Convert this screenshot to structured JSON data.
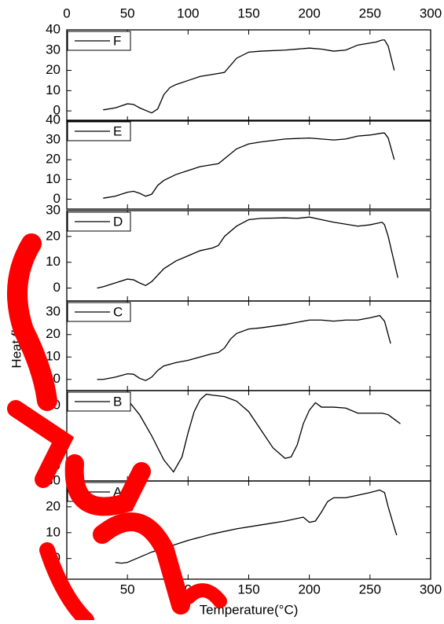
{
  "chart_data": [
    {
      "type": "line",
      "xlim": [
        0,
        300
      ],
      "xticks": [
        0,
        50,
        100,
        150,
        200,
        250,
        300
      ],
      "ylim": [
        -5,
        40
      ],
      "yticks": [
        0,
        10,
        20,
        30,
        40
      ],
      "x": [
        30,
        40,
        50,
        55,
        60,
        70,
        75,
        80,
        85,
        90,
        100,
        110,
        120,
        130,
        140,
        150,
        160,
        180,
        200,
        210,
        220,
        230,
        240,
        250,
        255,
        260,
        262,
        265,
        270
      ],
      "series": [
        {
          "name": "F",
          "color": "#000000",
          "values": [
            0.5,
            1.5,
            3.5,
            3.2,
            1.5,
            -1,
            1,
            8,
            11.5,
            13,
            15,
            17,
            18,
            19,
            26,
            29,
            29.5,
            30,
            31,
            30.5,
            29.5,
            30,
            32.5,
            33.5,
            34,
            35,
            35,
            32,
            20
          ]
        }
      ]
    },
    {
      "type": "line",
      "xlim": [
        0,
        300
      ],
      "xticks": [
        0,
        50,
        100,
        150,
        200,
        250,
        300
      ],
      "ylim": [
        -5,
        40
      ],
      "yticks": [
        0,
        10,
        20,
        30,
        40
      ],
      "x": [
        30,
        40,
        50,
        55,
        60,
        65,
        70,
        75,
        80,
        90,
        100,
        110,
        120,
        125,
        130,
        140,
        150,
        160,
        180,
        200,
        210,
        220,
        230,
        240,
        250,
        260,
        262,
        265,
        270
      ],
      "series": [
        {
          "name": "E",
          "color": "#000000",
          "values": [
            0.5,
            1.5,
            3.5,
            4,
            3,
            1.5,
            2.5,
            7,
            9.5,
            12.5,
            14.5,
            16.5,
            17.5,
            18,
            20.5,
            25.5,
            28,
            29,
            30.5,
            31,
            30.5,
            30,
            30.5,
            32,
            32.5,
            33.5,
            33.5,
            31,
            20
          ]
        }
      ]
    },
    {
      "type": "line",
      "xlim": [
        0,
        300
      ],
      "xticks": [
        0,
        50,
        100,
        150,
        200,
        250,
        300
      ],
      "ylim": [
        -5,
        30
      ],
      "yticks": [
        0,
        10,
        20,
        30
      ],
      "x": [
        25,
        30,
        40,
        50,
        55,
        60,
        65,
        70,
        80,
        90,
        100,
        110,
        120,
        125,
        130,
        140,
        150,
        160,
        180,
        190,
        200,
        210,
        220,
        240,
        250,
        260,
        262,
        265,
        270,
        273
      ],
      "series": [
        {
          "name": "D",
          "color": "#000000",
          "values": [
            0,
            0.5,
            2,
            3.5,
            3.2,
            2,
            1,
            2.5,
            7.5,
            10.5,
            12.5,
            14.5,
            15.5,
            16.5,
            20,
            24,
            26.5,
            27,
            27.2,
            27,
            27.5,
            26.5,
            25.5,
            24,
            24.5,
            25.5,
            24.5,
            20,
            10,
            4
          ]
        }
      ]
    },
    {
      "type": "line",
      "xlim": [
        0,
        300
      ],
      "xticks": [
        0,
        50,
        100,
        150,
        200,
        250,
        300
      ],
      "ylim": [
        -5,
        35
      ],
      "yticks": [
        0,
        10,
        20,
        30
      ],
      "ylabel": "Heat flow (mW)",
      "x": [
        25,
        30,
        40,
        50,
        55,
        60,
        65,
        70,
        75,
        80,
        90,
        100,
        110,
        120,
        125,
        130,
        135,
        140,
        150,
        160,
        180,
        200,
        210,
        220,
        230,
        240,
        250,
        258,
        262,
        267
      ],
      "series": [
        {
          "name": "C",
          "color": "#000000",
          "values": [
            0,
            0,
            1,
            2.5,
            2.3,
            0.5,
            -0.5,
            1,
            4,
            6,
            7.5,
            8.5,
            10,
            11.5,
            12,
            14,
            18,
            20.5,
            22.5,
            23,
            24.5,
            26.5,
            26.5,
            26,
            26.5,
            26.5,
            27.5,
            28.5,
            26,
            16
          ]
        }
      ]
    },
    {
      "type": "line",
      "xlim": [
        0,
        300
      ],
      "xticks": [
        0,
        50,
        100,
        150,
        200,
        250,
        300
      ],
      "ylim": [
        -25,
        5
      ],
      "yticks": [
        -20,
        -10,
        0
      ],
      "x": [
        40,
        50,
        60,
        70,
        80,
        88,
        95,
        100,
        105,
        110,
        115,
        120,
        130,
        140,
        150,
        160,
        170,
        180,
        185,
        190,
        195,
        200,
        205,
        210,
        220,
        230,
        240,
        250,
        260,
        265,
        270,
        275
      ],
      "series": [
        {
          "name": "B",
          "color": "#000000",
          "values": [
            4,
            2,
            -3,
            -10,
            -18,
            -22,
            -17,
            -9,
            -2,
            2,
            3.8,
            3.5,
            3,
            1.5,
            -2,
            -8,
            -14,
            -17.5,
            -17,
            -13,
            -6,
            -1.5,
            1,
            -0.5,
            -0.5,
            -0.8,
            -2.5,
            -2.5,
            -2.5,
            -3,
            -4.5,
            -6
          ]
        }
      ]
    },
    {
      "type": "line",
      "xlim": [
        0,
        300
      ],
      "xticks": [
        0,
        50,
        100,
        150,
        200,
        250,
        300
      ],
      "ylim": [
        -8,
        30
      ],
      "yticks": [
        0,
        10,
        20,
        30
      ],
      "xlabel": "Temperature(°C)",
      "x": [
        40,
        45,
        50,
        55,
        60,
        70,
        80,
        90,
        100,
        120,
        140,
        160,
        180,
        195,
        200,
        205,
        210,
        215,
        220,
        230,
        240,
        250,
        258,
        262,
        265,
        270,
        272
      ],
      "series": [
        {
          "name": "A",
          "color": "#000000",
          "values": [
            -1.5,
            -1.8,
            -1.5,
            -0.5,
            0.5,
            2.5,
            4,
            5.5,
            7,
            9.5,
            11.5,
            13,
            14.5,
            16,
            14,
            14.5,
            18,
            22,
            23.5,
            23.5,
            24.5,
            25.5,
            26.5,
            25.5,
            20,
            12,
            9
          ]
        }
      ]
    }
  ]
}
